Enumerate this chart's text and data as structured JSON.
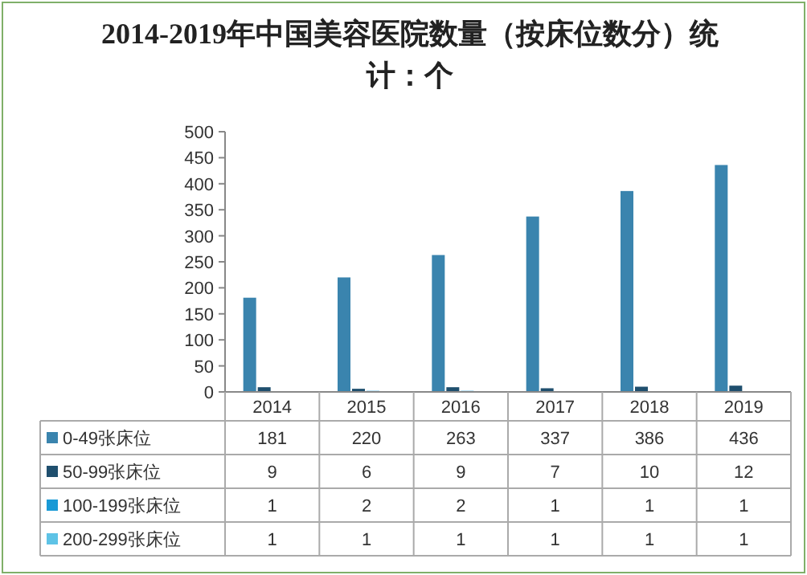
{
  "chart_data": {
    "type": "bar",
    "title": "2014-2019年中国美容医院数量（按床位数分）统计：个",
    "categories": [
      "2014",
      "2015",
      "2016",
      "2017",
      "2018",
      "2019"
    ],
    "series": [
      {
        "name": "0-49张床位",
        "color": "#3a84ae",
        "values": [
          181,
          220,
          263,
          337,
          386,
          436
        ]
      },
      {
        "name": "50-99张床位",
        "color": "#1f4f6e",
        "values": [
          9,
          6,
          9,
          7,
          10,
          12
        ]
      },
      {
        "name": "100-199张床位",
        "color": "#1a9ad6",
        "values": [
          1,
          2,
          2,
          1,
          1,
          1
        ]
      },
      {
        "name": "200-299张床位",
        "color": "#5ec3e6",
        "values": [
          1,
          1,
          1,
          1,
          1,
          1
        ]
      }
    ],
    "ylim": [
      0,
      500
    ],
    "yticks": [
      0,
      50,
      100,
      150,
      200,
      250,
      300,
      350,
      400,
      450,
      500
    ],
    "data_labels": true,
    "legend": "bottom",
    "grid": false
  }
}
